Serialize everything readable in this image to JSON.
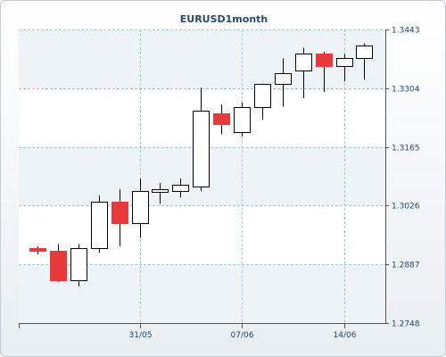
{
  "chart_data": {
    "type": "candlestick",
    "title": "EURUSD1month",
    "ylim": [
      1.2748,
      1.3443
    ],
    "y_ticks": [
      "1.3443",
      "1.3304",
      "1.3165",
      "1.3026",
      "1.2887",
      "1.2748"
    ],
    "x_tick_labels": [
      {
        "label": "31/05",
        "index": 5
      },
      {
        "label": "07/06",
        "index": 10
      },
      {
        "label": "14/06",
        "index": 15
      }
    ],
    "grid": true,
    "colors": {
      "up": "#ffffff",
      "down": "#e83a3a",
      "border": "#000000",
      "grid": "#9fcfe0",
      "band": "#edf3f6"
    },
    "candles": [
      {
        "open": 1.2925,
        "high": 1.293,
        "low": 1.291,
        "close": 1.292,
        "direction": "down"
      },
      {
        "open": 1.292,
        "high": 1.2935,
        "low": 1.2845,
        "close": 1.285,
        "direction": "down"
      },
      {
        "open": 1.285,
        "high": 1.2935,
        "low": 1.2835,
        "close": 1.2925,
        "direction": "up"
      },
      {
        "open": 1.2925,
        "high": 1.305,
        "low": 1.2915,
        "close": 1.3035,
        "direction": "up"
      },
      {
        "open": 1.3035,
        "high": 1.3065,
        "low": 1.293,
        "close": 1.2985,
        "direction": "down"
      },
      {
        "open": 1.2985,
        "high": 1.309,
        "low": 1.295,
        "close": 1.306,
        "direction": "up"
      },
      {
        "open": 1.306,
        "high": 1.308,
        "low": 1.303,
        "close": 1.3065,
        "direction": "up"
      },
      {
        "open": 1.306,
        "high": 1.309,
        "low": 1.3045,
        "close": 1.3075,
        "direction": "up"
      },
      {
        "open": 1.307,
        "high": 1.3305,
        "low": 1.306,
        "close": 1.325,
        "direction": "up"
      },
      {
        "open": 1.3245,
        "high": 1.3265,
        "low": 1.3195,
        "close": 1.322,
        "direction": "down"
      },
      {
        "open": 1.32,
        "high": 1.327,
        "low": 1.319,
        "close": 1.326,
        "direction": "up"
      },
      {
        "open": 1.326,
        "high": 1.3315,
        "low": 1.323,
        "close": 1.3315,
        "direction": "up"
      },
      {
        "open": 1.3315,
        "high": 1.3375,
        "low": 1.326,
        "close": 1.334,
        "direction": "up"
      },
      {
        "open": 1.3345,
        "high": 1.34,
        "low": 1.328,
        "close": 1.3385,
        "direction": "up"
      },
      {
        "open": 1.3385,
        "high": 1.339,
        "low": 1.3295,
        "close": 1.3355,
        "direction": "down"
      },
      {
        "open": 1.3355,
        "high": 1.3385,
        "low": 1.332,
        "close": 1.3375,
        "direction": "up"
      },
      {
        "open": 1.3375,
        "high": 1.341,
        "low": 1.3325,
        "close": 1.3405,
        "direction": "up"
      }
    ]
  }
}
